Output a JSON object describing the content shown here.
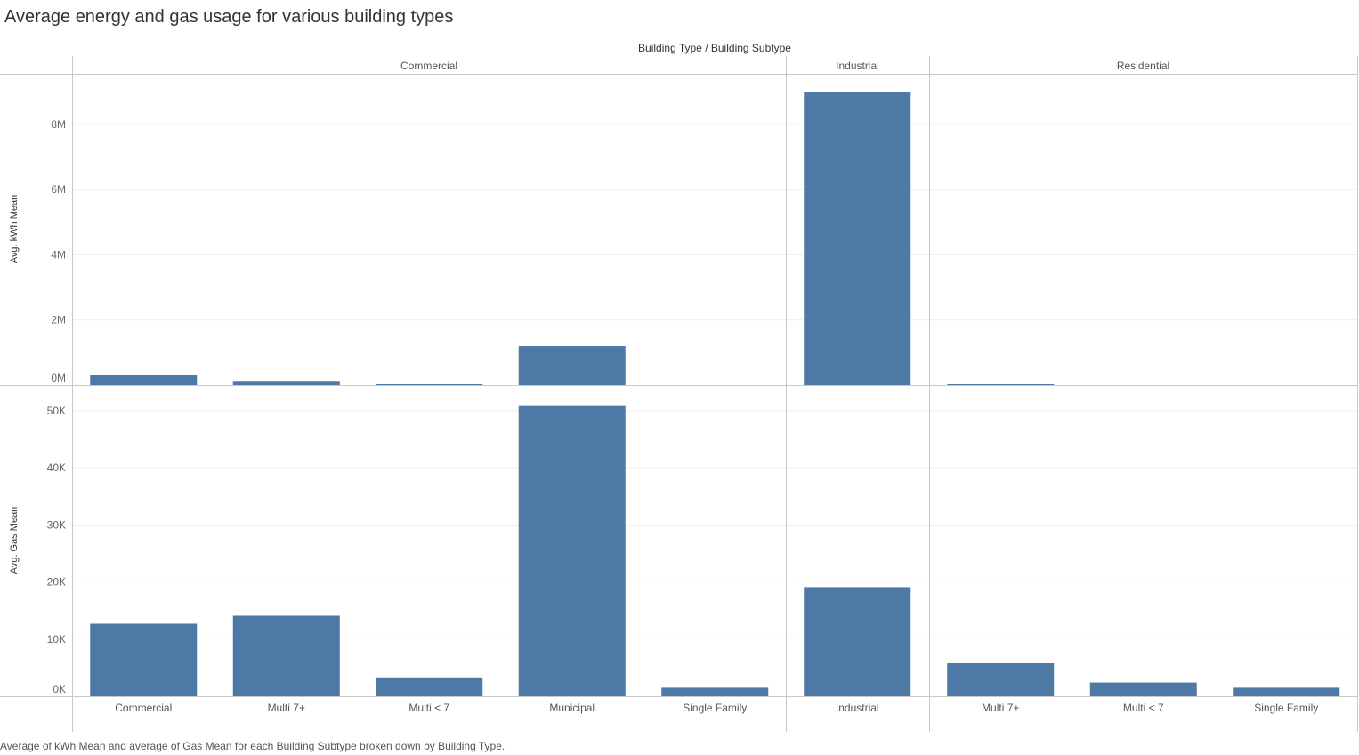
{
  "title": "Average energy and gas usage for various building types",
  "caption": "Average of kWh Mean and average of Gas Mean for each Building Subtype broken down by Building Type.",
  "colors": {
    "bar": "#4e79a7",
    "divider": "#c8c8c8",
    "grid": "#eeeeee"
  },
  "chart_data": {
    "type": "bar",
    "column_header": "Building Type / Building Subtype",
    "groups": [
      {
        "name": "Commercial",
        "subtypes": [
          "Commercial",
          "Multi 7+",
          "Multi < 7",
          "Municipal",
          "Single Family"
        ]
      },
      {
        "name": "Industrial",
        "subtypes": [
          "Industrial"
        ]
      },
      {
        "name": "Residential",
        "subtypes": [
          "Multi 7+",
          "Multi < 7",
          "Single Family"
        ]
      }
    ],
    "panels": [
      {
        "ylabel": "Avg. kWh Mean",
        "ylim": [
          0,
          9200000
        ],
        "ticks": [
          0,
          2000000,
          4000000,
          6000000,
          8000000
        ],
        "tick_labels": [
          "0M",
          "2M",
          "4M",
          "6M",
          "8M"
        ],
        "values": [
          300000,
          130000,
          25000,
          1200000,
          0,
          9000000,
          20000,
          0,
          0
        ]
      },
      {
        "ylabel": "Avg. Gas Mean",
        "ylim": [
          0,
          52500
        ],
        "ticks": [
          0,
          10000,
          20000,
          30000,
          40000,
          50000
        ],
        "tick_labels": [
          "0K",
          "10K",
          "20K",
          "30K",
          "40K",
          "50K"
        ],
        "values": [
          12700,
          14100,
          3300,
          51000,
          1500,
          19100,
          5900,
          2400,
          1500
        ]
      }
    ],
    "grid": true
  }
}
